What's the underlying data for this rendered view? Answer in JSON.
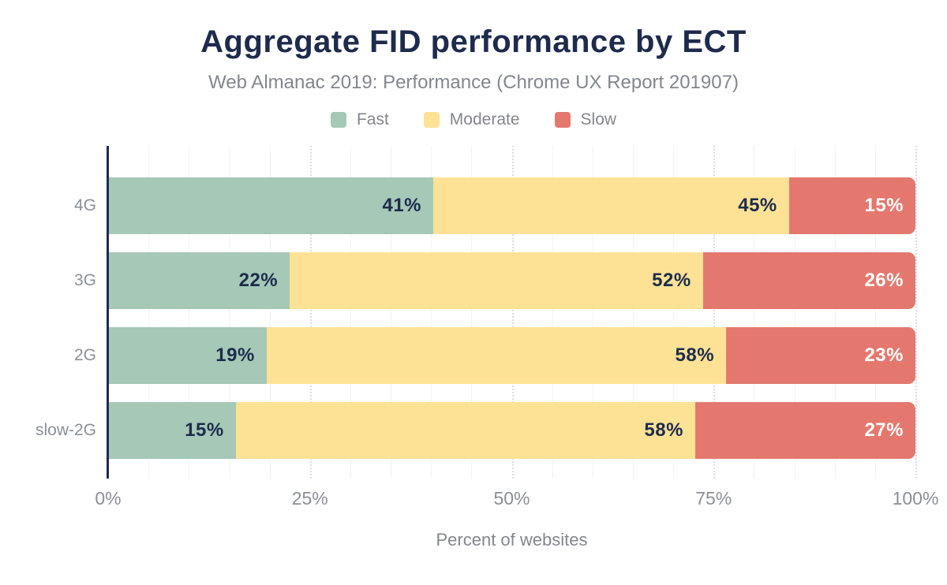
{
  "title": "Aggregate FID performance by ECT",
  "subtitle": "Web Almanac 2019: Performance (Chrome UX Report 201907)",
  "chart_data": {
    "type": "bar",
    "orientation": "horizontal",
    "stacked": true,
    "title": "Aggregate FID performance by ECT",
    "subtitle": "Web Almanac 2019: Performance (Chrome UX Report 201907)",
    "categories": [
      "4G",
      "3G",
      "2G",
      "slow-2G"
    ],
    "series": [
      {
        "name": "Fast",
        "color": "#a5c8b7",
        "label_color": "#1e2b4d",
        "values": [
          41,
          22,
          19,
          15
        ]
      },
      {
        "name": "Moderate",
        "color": "#fde295",
        "label_color": "#1e2b4d",
        "values": [
          45,
          52,
          58,
          58
        ]
      },
      {
        "name": "Slow",
        "color": "#e4786e",
        "label_color": "#ffffff",
        "values": [
          15,
          26,
          23,
          27
        ]
      }
    ],
    "value_suffix": "%",
    "xlabel": "Percent of websites",
    "xlim": [
      0,
      100
    ],
    "x_ticks": [
      {
        "value": 0,
        "label": "0%"
      },
      {
        "value": 25,
        "label": "25%"
      },
      {
        "value": 50,
        "label": "50%"
      },
      {
        "value": 75,
        "label": "75%"
      },
      {
        "value": 100,
        "label": "100%"
      }
    ],
    "grid": {
      "minor_step": 5,
      "major_step": 25,
      "major_style": "dotted"
    },
    "legend_position": "top"
  },
  "colors": {
    "title": "#1e2b4d",
    "axis": "#1e2b4d",
    "muted_text": "#82878d",
    "fast": "#a5c8b7",
    "moderate": "#fde295",
    "slow": "#e4786e"
  }
}
